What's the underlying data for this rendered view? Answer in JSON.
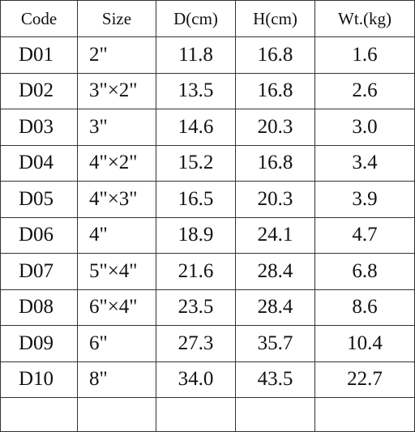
{
  "table": {
    "header": [
      "Code",
      "Size",
      "D(cm)",
      "H(cm)",
      "Wt.(kg)"
    ],
    "rows": [
      [
        "D01",
        "2\"",
        "11.8",
        "16.8",
        "1.6"
      ],
      [
        "D02",
        "3\"×2\"",
        "13.5",
        "16.8",
        "2.6"
      ],
      [
        "D03",
        "3\"",
        "14.6",
        "20.3",
        "3.0"
      ],
      [
        "D04",
        "4\"×2\"",
        "15.2",
        "16.8",
        "3.4"
      ],
      [
        "D05",
        "4\"×3\"",
        "16.5",
        "20.3",
        "3.9"
      ],
      [
        "D06",
        "4\"",
        "18.9",
        "24.1",
        "4.7"
      ],
      [
        "D07",
        "5\"×4\"",
        "21.6",
        "28.4",
        "6.8"
      ],
      [
        "D08",
        "6\"×4\"",
        "23.5",
        "28.4",
        "8.6"
      ],
      [
        "D09",
        "6\"",
        "27.3",
        "35.7",
        "10.4"
      ],
      [
        "D10",
        "8\"",
        "34.0",
        "43.5",
        "22.7"
      ]
    ]
  }
}
